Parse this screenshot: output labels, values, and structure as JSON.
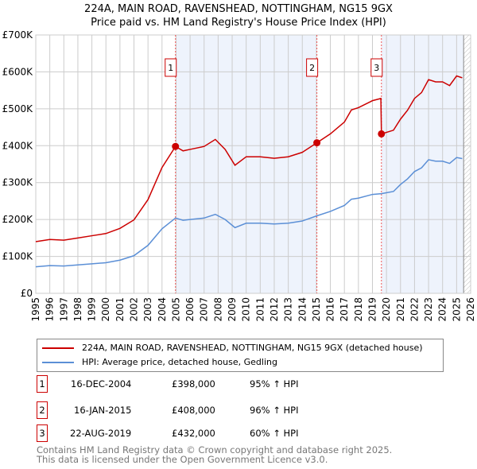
{
  "title": "224A, MAIN ROAD, RAVENSHEAD, NOTTINGHAM, NG15 9GX",
  "subtitle": "Price paid vs. HM Land Registry's House Price Index (HPI)",
  "chart_data": {
    "type": "line",
    "xlim": [
      1995,
      2026
    ],
    "ylim": [
      0,
      700000
    ],
    "x_ticks": [
      "1995",
      "1996",
      "1997",
      "1998",
      "1999",
      "2000",
      "2001",
      "2002",
      "2003",
      "2004",
      "2005",
      "2006",
      "2007",
      "2008",
      "2009",
      "2010",
      "2011",
      "2012",
      "2013",
      "2014",
      "2015",
      "2016",
      "2017",
      "2018",
      "2019",
      "2020",
      "2021",
      "2022",
      "2023",
      "2024",
      "2025",
      "2026"
    ],
    "y_ticks": [
      {
        "v": 0,
        "label": "£0"
      },
      {
        "v": 100000,
        "label": "£100K"
      },
      {
        "v": 200000,
        "label": "£200K"
      },
      {
        "v": 300000,
        "label": "£300K"
      },
      {
        "v": 400000,
        "label": "£400K"
      },
      {
        "v": 500000,
        "label": "£500K"
      },
      {
        "v": 600000,
        "label": "£600K"
      },
      {
        "v": 700000,
        "label": "£700K"
      }
    ],
    "shaded_ranges": [
      [
        2004.96,
        2015.04
      ],
      [
        2019.64,
        2025.5
      ]
    ],
    "hatched_from": 2025.5,
    "series": [
      {
        "name": "224A, MAIN ROAD, RAVENSHEAD, NOTTINGHAM, NG15 9GX (detached house)",
        "color": "#cc0000",
        "x": [
          1995,
          1996,
          1997,
          1998,
          1999,
          2000,
          2001,
          2002,
          2003,
          2004,
          2004.96,
          2005.5,
          2006,
          2007,
          2007.8,
          2008.5,
          2009.2,
          2010,
          2011,
          2012,
          2013,
          2014,
          2015.04,
          2016,
          2017,
          2017.5,
          2018,
          2019,
          2019.6,
          2019.64,
          2020.5,
          2021,
          2021.5,
          2022,
          2022.5,
          2023,
          2023.5,
          2024,
          2024.5,
          2025,
          2025.4
        ],
        "y": [
          140000,
          146000,
          144000,
          150000,
          156000,
          162000,
          176000,
          199000,
          254000,
          341000,
          398000,
          386000,
          390000,
          398000,
          417000,
          390000,
          347000,
          370000,
          370000,
          366000,
          370000,
          382000,
          408000,
          432000,
          464000,
          497000,
          503000,
          522000,
          528000,
          432000,
          442000,
          472000,
          496000,
          528000,
          544000,
          579000,
          573000,
          573000,
          563000,
          589000,
          584000
        ]
      },
      {
        "name": "HPI: Average price, detached house, Gedling",
        "color": "#5b8fd6",
        "x": [
          1995,
          1996,
          1997,
          1998,
          1999,
          2000,
          2001,
          2002,
          2003,
          2004,
          2004.96,
          2005.5,
          2006,
          2007,
          2007.8,
          2008.5,
          2009.2,
          2010,
          2011,
          2012,
          2013,
          2014,
          2015.04,
          2016,
          2017,
          2017.5,
          2018,
          2019,
          2019.64,
          2020.5,
          2021,
          2021.5,
          2022,
          2022.5,
          2023,
          2023.5,
          2024,
          2024.5,
          2025,
          2025.4
        ],
        "y": [
          72000,
          75000,
          74000,
          77000,
          80000,
          83000,
          90000,
          102000,
          130000,
          175000,
          204000,
          198000,
          200000,
          204000,
          214000,
          200000,
          178000,
          190000,
          190000,
          188000,
          190000,
          196000,
          210000,
          222000,
          238000,
          255000,
          258000,
          268000,
          270000,
          276000,
          295000,
          310000,
          330000,
          340000,
          362000,
          358000,
          358000,
          352000,
          368000,
          365000
        ]
      }
    ],
    "sales": [
      {
        "label": "1",
        "x": 2004.96,
        "y": 398000,
        "date": "16-DEC-2004",
        "price": "£398,000",
        "hpi": "95% ↑ HPI"
      },
      {
        "label": "2",
        "x": 2015.04,
        "y": 408000,
        "date": "16-JAN-2015",
        "price": "£408,000",
        "hpi": "96% ↑ HPI"
      },
      {
        "label": "3",
        "x": 2019.64,
        "y": 432000,
        "date": "22-AUG-2019",
        "price": "£432,000",
        "hpi": "60% ↑ HPI"
      }
    ]
  },
  "footer": [
    "Contains HM Land Registry data © Crown copyright and database right 2025.",
    "This data is licensed under the Open Government Licence v3.0."
  ]
}
